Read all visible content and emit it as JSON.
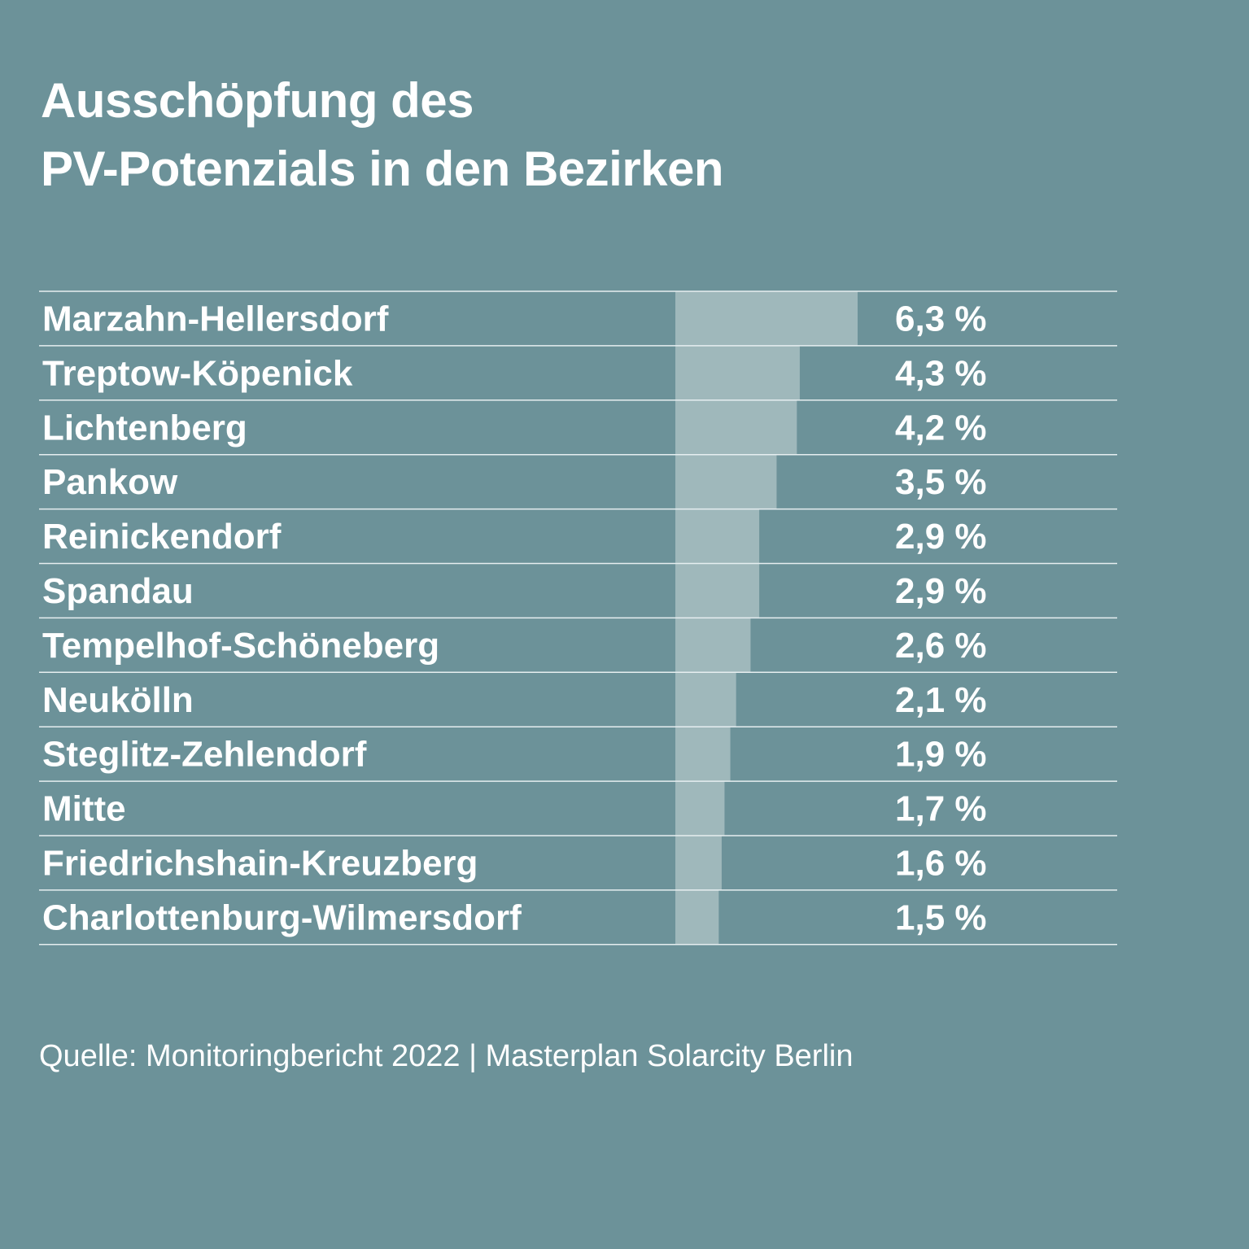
{
  "title": {
    "line1": "Ausschöpfung des",
    "line2": "PV-Potenzials in den Bezirken"
  },
  "source": "Quelle: Monitoringbericht 2022 | Masterplan Solarcity Berlin",
  "colors": {
    "background": "#6c9299",
    "bar": "#9fb8bb",
    "text": "#ffffff",
    "rule": "#e6eef0"
  },
  "chart_data": {
    "type": "bar",
    "orientation": "horizontal",
    "categories": [
      "Marzahn-Hellersdorf",
      "Treptow-Köpenick",
      "Lichtenberg",
      "Pankow",
      "Reinickendorf",
      "Spandau",
      "Tempelhof-Schöneberg",
      "Neukölln",
      "Steglitz-Zehlendorf",
      "Mitte",
      "Friedrichshain-Kreuzberg",
      "Charlottenburg-Wilmersdorf"
    ],
    "values": [
      6.3,
      4.3,
      4.2,
      3.5,
      2.9,
      2.9,
      2.6,
      2.1,
      1.9,
      1.7,
      1.6,
      1.5
    ],
    "value_labels": [
      "6,3 %",
      "4,3 %",
      "4,2 %",
      "3,5 %",
      "2,9 %",
      "2,9 %",
      "2,6 %",
      "2,1 %",
      "1,9 %",
      "1,7 %",
      "1,6 %",
      "1,5 %"
    ],
    "unit": "%",
    "xlim": [
      0,
      6.3
    ],
    "grid": false,
    "legend": "none"
  }
}
